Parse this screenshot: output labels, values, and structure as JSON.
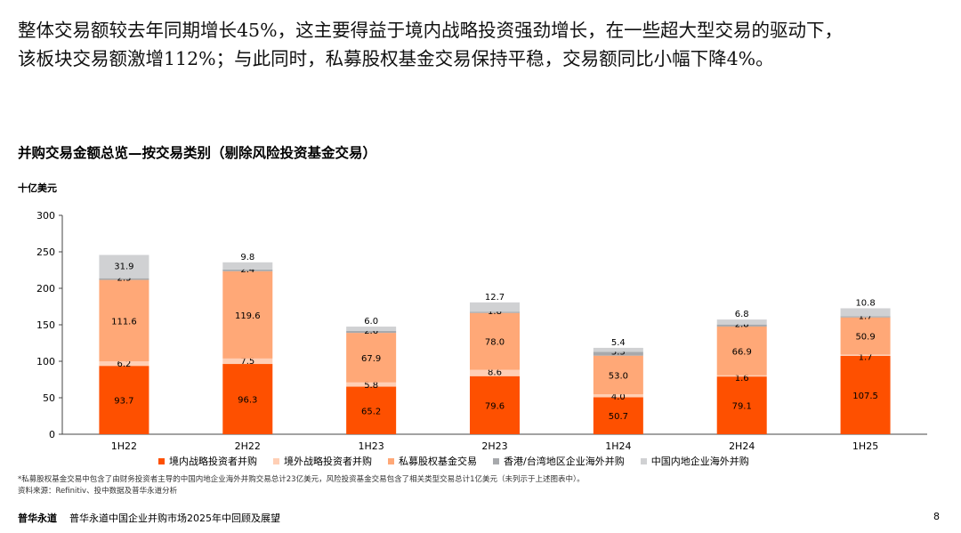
{
  "intro": {
    "line1": "整体交易额较去年同期增长45%，这主要得益于境内战略投资强劲增长，在一些超大型交易的驱动下，",
    "line2": "该板块交易额激增112%；与此同时，私募股权基金交易保持平稳，交易额同比小幅下降4%。"
  },
  "chart_data": {
    "type": "bar",
    "stacked": true,
    "title": "并购交易金额总览—按交易类别（剔除风险投资基金交易）",
    "ylabel": "十亿美元",
    "xlabel": "",
    "ylim": [
      0,
      300
    ],
    "yticks": [
      0,
      50,
      100,
      150,
      200,
      250,
      300
    ],
    "categories": [
      "1H22",
      "2H22",
      "1H23",
      "2H23",
      "1H24",
      "2H24",
      "1H25"
    ],
    "series": [
      {
        "name": "境内战略投资者并购",
        "color": "#fe5000",
        "values": [
          93.7,
          96.3,
          65.2,
          79.6,
          50.7,
          79.1,
          107.5
        ]
      },
      {
        "name": "境外战略投资者并购",
        "color": "#ffcfb5",
        "values": [
          6.2,
          7.5,
          5.8,
          8.6,
          4.0,
          1.6,
          1.7
        ]
      },
      {
        "name": "私募股权基金交易",
        "color": "#ffa877",
        "values": [
          111.6,
          119.6,
          67.9,
          78.0,
          53.0,
          66.9,
          50.9
        ]
      },
      {
        "name": "香港/台湾地区企业海外并购",
        "color": "#a7a9ac",
        "values": [
          2.3,
          2.4,
          2.6,
          1.8,
          5.3,
          2.8,
          1.7
        ]
      },
      {
        "name": "中国内地企业海外并购",
        "color": "#d0d1d3",
        "values": [
          31.9,
          9.8,
          6.0,
          12.7,
          5.4,
          6.8,
          10.8
        ]
      }
    ],
    "value_labels": [
      [
        "93.7",
        "96.3",
        "65.2",
        "79.6",
        "50.7",
        "79.1",
        "107.5"
      ],
      [
        "6.2",
        "7.5",
        "5.8",
        "8.6",
        "4.0",
        "1.6",
        "1.7"
      ],
      [
        "111.6",
        "119.6",
        "67.9",
        "78.0",
        "53.0",
        "66.9",
        "50.9"
      ],
      [
        "2.3",
        "2.4",
        "2.6",
        "1.8",
        "5.3",
        "2.8",
        "1.7"
      ],
      [
        "31.9",
        "9.8",
        "6.0",
        "12.7",
        "5.4",
        "6.8",
        "10.8"
      ]
    ],
    "legend_position": "bottom",
    "grid": false
  },
  "footnote": {
    "line1": "*私募股权基金交易中包含了由财务投资者主导的中国内地企业海外并购交易总计23亿美元，风险投资基金交易包含了相关类型交易总计1亿美元（未列示于上述图表中）。",
    "line2": "资料来源：Refinitiv、投中数据及普华永道分析"
  },
  "footer": {
    "brand": "普华永道",
    "title": "普华永道中国企业并购市场2025年中回顾及展望",
    "page": "8"
  }
}
